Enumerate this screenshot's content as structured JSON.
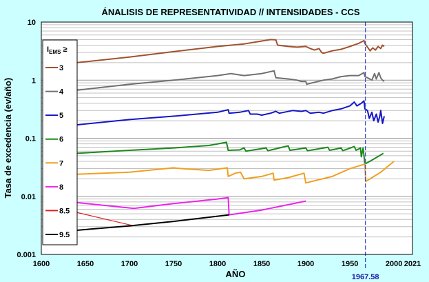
{
  "chart_data": {
    "type": "line",
    "title": "ÁNALISIS DE REPRESENTATIVIDAD  //  INTENSIDADES - CCS",
    "xlabel": "AÑO",
    "ylabel": "Tasa de excedencia (ev/año)",
    "xlim": [
      1600,
      2021
    ],
    "ylim": [
      0.001,
      10
    ],
    "yscale": "log",
    "xticks": [
      1600,
      1650,
      1700,
      1750,
      1800,
      1850,
      1900,
      1950,
      2000,
      2021
    ],
    "yticks": [
      {
        "value": 0.001,
        "label": "0.001"
      },
      {
        "value": 0.01,
        "label": "0.01"
      },
      {
        "value": 0.1,
        "label": "0.1"
      },
      {
        "value": 1,
        "label": "1"
      },
      {
        "value": 10,
        "label": "10"
      }
    ],
    "reference_line": {
      "x": 1967.58,
      "label": "1967.58",
      "color": "#3a4fc4"
    },
    "legend": {
      "title_main": "I",
      "title_sub": "EMS",
      "title_suffix": " ≥",
      "position": "top-left"
    },
    "series": [
      {
        "name": "3",
        "color": "#a0522d",
        "points": [
          [
            1640,
            2.0
          ],
          [
            1700,
            2.5
          ],
          [
            1750,
            3.1
          ],
          [
            1800,
            3.8
          ],
          [
            1830,
            4.2
          ],
          [
            1860,
            5.0
          ],
          [
            1866,
            4.95
          ],
          [
            1868,
            4.0
          ],
          [
            1880,
            3.8
          ],
          [
            1890,
            3.7
          ],
          [
            1900,
            3.8
          ],
          [
            1905,
            3.5
          ],
          [
            1910,
            3.3
          ],
          [
            1915,
            3.5
          ],
          [
            1918,
            3.0
          ],
          [
            1920,
            2.9
          ],
          [
            1930,
            3.2
          ],
          [
            1940,
            3.4
          ],
          [
            1950,
            3.8
          ],
          [
            1960,
            4.3
          ],
          [
            1966,
            4.8
          ],
          [
            1967,
            4.3
          ],
          [
            1970,
            3.7
          ],
          [
            1973,
            3.2
          ],
          [
            1976,
            3.6
          ],
          [
            1979,
            3.3
          ],
          [
            1982,
            3.8
          ],
          [
            1985,
            3.5
          ],
          [
            1987,
            4.0
          ],
          [
            1989,
            3.8
          ]
        ]
      },
      {
        "name": "4",
        "color": "#707070",
        "points": [
          [
            1640,
            0.67
          ],
          [
            1700,
            0.85
          ],
          [
            1750,
            1.0
          ],
          [
            1800,
            1.2
          ],
          [
            1815,
            1.3
          ],
          [
            1830,
            1.2
          ],
          [
            1850,
            1.3
          ],
          [
            1864,
            1.45
          ],
          [
            1866,
            1.1
          ],
          [
            1880,
            1.05
          ],
          [
            1890,
            1.0
          ],
          [
            1895,
            0.95
          ],
          [
            1900,
            0.95
          ],
          [
            1901,
            0.85
          ],
          [
            1910,
            0.92
          ],
          [
            1920,
            1.0
          ],
          [
            1930,
            1.05
          ],
          [
            1940,
            1.15
          ],
          [
            1950,
            1.2
          ],
          [
            1960,
            1.2
          ],
          [
            1966,
            1.35
          ],
          [
            1967,
            1.15
          ],
          [
            1970,
            1.1
          ],
          [
            1975,
            1.0
          ],
          [
            1978,
            1.3
          ],
          [
            1980,
            1.05
          ],
          [
            1983,
            1.35
          ],
          [
            1985,
            1.1
          ],
          [
            1987,
            1.0
          ],
          [
            1989,
            0.95
          ]
        ]
      },
      {
        "name": "5",
        "color": "#1515c8",
        "points": [
          [
            1640,
            0.17
          ],
          [
            1700,
            0.21
          ],
          [
            1750,
            0.24
          ],
          [
            1800,
            0.28
          ],
          [
            1812,
            0.31
          ],
          [
            1813,
            0.27
          ],
          [
            1825,
            0.28
          ],
          [
            1835,
            0.3
          ],
          [
            1837,
            0.26
          ],
          [
            1845,
            0.26
          ],
          [
            1850,
            0.25
          ],
          [
            1860,
            0.27
          ],
          [
            1866,
            0.29
          ],
          [
            1870,
            0.27
          ],
          [
            1885,
            0.3
          ],
          [
            1895,
            0.29
          ],
          [
            1900,
            0.3
          ],
          [
            1905,
            0.27
          ],
          [
            1915,
            0.28
          ],
          [
            1920,
            0.27
          ],
          [
            1930,
            0.3
          ],
          [
            1940,
            0.32
          ],
          [
            1950,
            0.36
          ],
          [
            1955,
            0.42
          ],
          [
            1958,
            0.36
          ],
          [
            1963,
            0.4
          ],
          [
            1966,
            0.44
          ],
          [
            1967,
            0.32
          ],
          [
            1970,
            0.3
          ],
          [
            1972,
            0.22
          ],
          [
            1975,
            0.28
          ],
          [
            1977,
            0.2
          ],
          [
            1980,
            0.26
          ],
          [
            1982,
            0.19
          ],
          [
            1984,
            0.24
          ],
          [
            1985,
            0.3
          ],
          [
            1987,
            0.18
          ],
          [
            1989,
            0.24
          ]
        ]
      },
      {
        "name": "6",
        "color": "#1a8a1a",
        "points": [
          [
            1640,
            0.055
          ],
          [
            1700,
            0.062
          ],
          [
            1750,
            0.068
          ],
          [
            1790,
            0.075
          ],
          [
            1810,
            0.085
          ],
          [
            1812,
            0.062
          ],
          [
            1825,
            0.063
          ],
          [
            1830,
            0.068
          ],
          [
            1832,
            0.06
          ],
          [
            1855,
            0.068
          ],
          [
            1857,
            0.061
          ],
          [
            1880,
            0.074
          ],
          [
            1882,
            0.062
          ],
          [
            1900,
            0.068
          ],
          [
            1902,
            0.061
          ],
          [
            1925,
            0.07
          ],
          [
            1927,
            0.062
          ],
          [
            1940,
            0.068
          ],
          [
            1942,
            0.061
          ],
          [
            1955,
            0.072
          ],
          [
            1957,
            0.062
          ],
          [
            1962,
            0.068
          ],
          [
            1963,
            0.048
          ],
          [
            1965,
            0.068
          ],
          [
            1967,
            0.036
          ],
          [
            1975,
            0.042
          ],
          [
            1988,
            0.055
          ]
        ]
      },
      {
        "name": "7",
        "color": "#f0a020",
        "points": [
          [
            1640,
            0.024
          ],
          [
            1700,
            0.026
          ],
          [
            1750,
            0.031
          ],
          [
            1760,
            0.03
          ],
          [
            1790,
            0.028
          ],
          [
            1811,
            0.031
          ],
          [
            1812,
            0.022
          ],
          [
            1820,
            0.025
          ],
          [
            1826,
            0.026
          ],
          [
            1830,
            0.02
          ],
          [
            1850,
            0.022
          ],
          [
            1863,
            0.025
          ],
          [
            1864,
            0.019
          ],
          [
            1880,
            0.021
          ],
          [
            1898,
            0.025
          ],
          [
            1900,
            0.017
          ],
          [
            1930,
            0.022
          ],
          [
            1950,
            0.03
          ],
          [
            1967,
            0.036
          ],
          [
            1968,
            0.018
          ],
          [
            1985,
            0.026
          ],
          [
            2000,
            0.04
          ]
        ]
      },
      {
        "name": "8",
        "color": "#ee22ee",
        "points": [
          [
            1640,
            0.0078
          ],
          [
            1705,
            0.0062
          ],
          [
            1750,
            0.0075
          ],
          [
            1800,
            0.009
          ],
          [
            1812,
            0.0095
          ],
          [
            1813,
            0.0048
          ],
          [
            1850,
            0.0058
          ],
          [
            1900,
            0.0083
          ]
        ]
      },
      {
        "name": "8.5",
        "color": "#dd2020",
        "points": [
          [
            1640,
            0.0053
          ],
          [
            1705,
            0.0031
          ]
        ]
      },
      {
        "name": "9.5",
        "color": "#000000",
        "points": [
          [
            1640,
            0.0026
          ],
          [
            1700,
            0.0031
          ],
          [
            1750,
            0.0037
          ],
          [
            1813,
            0.0048
          ]
        ]
      }
    ]
  }
}
